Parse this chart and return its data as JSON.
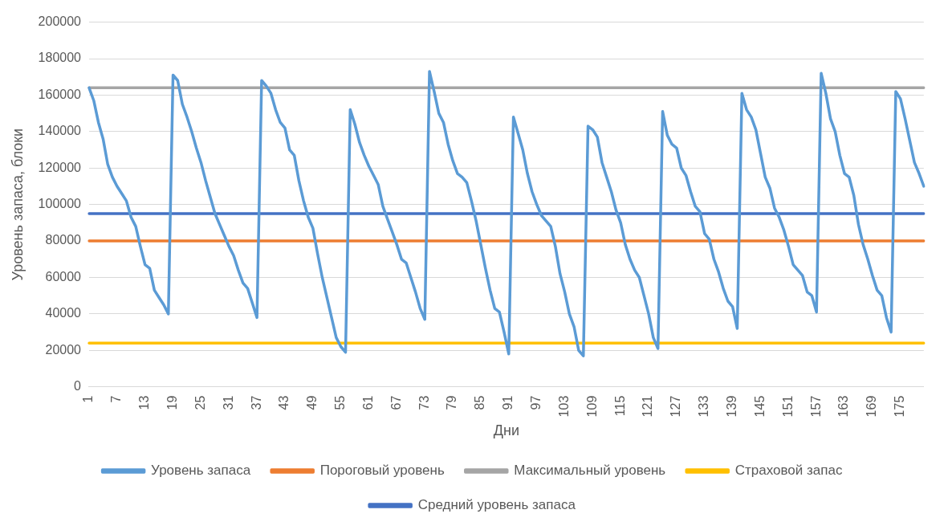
{
  "chart_data": {
    "type": "line",
    "xlabel": "Дни",
    "ylabel": "Уровень запаса, блоки",
    "categories": [
      "1",
      null,
      null,
      null,
      null,
      null,
      "7",
      null,
      null,
      null,
      null,
      null,
      "13",
      null,
      null,
      null,
      null,
      null,
      "19",
      null,
      null,
      null,
      null,
      null,
      "25",
      null,
      null,
      null,
      null,
      null,
      "31",
      null,
      null,
      null,
      null,
      null,
      "37",
      null,
      null,
      null,
      null,
      null,
      "43",
      null,
      null,
      null,
      null,
      null,
      "49",
      null,
      null,
      null,
      null,
      null,
      "55",
      null,
      null,
      null,
      null,
      null,
      "61",
      null,
      null,
      null,
      null,
      null,
      "67",
      null,
      null,
      null,
      null,
      null,
      "73",
      null,
      null,
      null,
      null,
      null,
      "79",
      null,
      null,
      null,
      null,
      null,
      "85",
      null,
      null,
      null,
      null,
      null,
      "91",
      null,
      null,
      null,
      null,
      null,
      "97",
      null,
      null,
      null,
      null,
      null,
      "103",
      null,
      null,
      null,
      null,
      null,
      "109",
      null,
      null,
      null,
      null,
      null,
      "115",
      null,
      null,
      null,
      null,
      null,
      "121",
      null,
      null,
      null,
      null,
      null,
      "127",
      null,
      null,
      null,
      null,
      null,
      "133",
      null,
      null,
      null,
      null,
      null,
      "139",
      null,
      null,
      null,
      null,
      null,
      "145",
      null,
      null,
      null,
      null,
      null,
      "151",
      null,
      null,
      null,
      null,
      null,
      "157",
      null,
      null,
      null,
      null,
      null,
      "163",
      null,
      null,
      null,
      null,
      null,
      "169",
      null,
      null,
      null,
      null,
      null,
      "175",
      null,
      null,
      null,
      null,
      null
    ],
    "series": [
      {
        "name": "Уровень запаса",
        "color": "#5b9bd5",
        "values": [
          164000,
          157000,
          145000,
          136000,
          122000,
          115000,
          110000,
          106000,
          102000,
          93000,
          88000,
          77000,
          67000,
          65000,
          53000,
          49000,
          45000,
          40000,
          171000,
          168000,
          155000,
          148000,
          140000,
          131000,
          123000,
          113000,
          104000,
          95000,
          89000,
          83000,
          77000,
          72000,
          64000,
          57000,
          54000,
          46000,
          38000,
          168000,
          165000,
          161000,
          152000,
          145000,
          142000,
          130000,
          127000,
          113000,
          102000,
          93000,
          87000,
          73000,
          60000,
          49000,
          38000,
          27000,
          22000,
          19000,
          152000,
          144000,
          134000,
          127000,
          121000,
          116000,
          111000,
          99000,
          92000,
          85000,
          78000,
          70000,
          68000,
          60000,
          52000,
          43000,
          37000,
          173000,
          162000,
          150000,
          145000,
          133000,
          124000,
          117000,
          115000,
          112000,
          102000,
          91000,
          78000,
          65000,
          53000,
          43000,
          41000,
          30000,
          18000,
          148000,
          139000,
          130000,
          117000,
          107000,
          100000,
          94000,
          91000,
          88000,
          77000,
          62000,
          52000,
          40000,
          33000,
          20000,
          17000,
          143000,
          141000,
          137000,
          123000,
          115000,
          107000,
          97000,
          90000,
          78000,
          70000,
          64000,
          60000,
          50000,
          40000,
          27000,
          21000,
          151000,
          138000,
          133000,
          131000,
          120000,
          116000,
          107000,
          99000,
          96000,
          84000,
          81000,
          70000,
          63000,
          54000,
          47000,
          44000,
          32000,
          161000,
          152000,
          148000,
          141000,
          128000,
          115000,
          109000,
          98000,
          93000,
          86000,
          77000,
          67000,
          64000,
          61000,
          52000,
          50000,
          41000,
          172000,
          161000,
          147000,
          140000,
          127000,
          117000,
          115000,
          105000,
          89000,
          78000,
          70000,
          61000,
          53000,
          50000,
          38000,
          30000,
          162000,
          158000,
          147000,
          135000,
          123000,
          117000,
          110000
        ]
      },
      {
        "name": "Пороговый уровень",
        "color": "#ed7d31",
        "values": [
          80000,
          80000,
          80000,
          80000,
          80000,
          80000,
          80000,
          80000,
          80000,
          80000,
          80000,
          80000,
          80000,
          80000,
          80000,
          80000,
          80000,
          80000,
          80000,
          80000,
          80000,
          80000,
          80000,
          80000,
          80000,
          80000,
          80000,
          80000,
          80000,
          80000,
          80000,
          80000,
          80000,
          80000,
          80000,
          80000,
          80000,
          80000,
          80000,
          80000,
          80000,
          80000,
          80000,
          80000,
          80000,
          80000,
          80000,
          80000,
          80000,
          80000,
          80000,
          80000,
          80000,
          80000,
          80000,
          80000,
          80000,
          80000,
          80000,
          80000,
          80000,
          80000,
          80000,
          80000,
          80000,
          80000,
          80000,
          80000,
          80000,
          80000,
          80000,
          80000,
          80000,
          80000,
          80000,
          80000,
          80000,
          80000,
          80000,
          80000,
          80000,
          80000,
          80000,
          80000,
          80000,
          80000,
          80000,
          80000,
          80000,
          80000,
          80000,
          80000,
          80000,
          80000,
          80000,
          80000,
          80000,
          80000,
          80000,
          80000,
          80000,
          80000,
          80000,
          80000,
          80000,
          80000,
          80000,
          80000,
          80000,
          80000,
          80000,
          80000,
          80000,
          80000,
          80000,
          80000,
          80000,
          80000,
          80000,
          80000,
          80000,
          80000,
          80000,
          80000,
          80000,
          80000,
          80000,
          80000,
          80000,
          80000,
          80000,
          80000,
          80000,
          80000,
          80000,
          80000,
          80000,
          80000,
          80000,
          80000,
          80000,
          80000,
          80000,
          80000,
          80000,
          80000,
          80000,
          80000,
          80000,
          80000,
          80000,
          80000,
          80000,
          80000,
          80000,
          80000,
          80000,
          80000,
          80000,
          80000,
          80000,
          80000,
          80000,
          80000,
          80000,
          80000,
          80000,
          80000,
          80000,
          80000,
          80000,
          80000,
          80000,
          80000,
          80000,
          80000,
          80000,
          80000,
          80000,
          80000
        ]
      },
      {
        "name": "Максимальный уровень",
        "color": "#a5a5a5",
        "values": [
          164000,
          164000,
          164000,
          164000,
          164000,
          164000,
          164000,
          164000,
          164000,
          164000,
          164000,
          164000,
          164000,
          164000,
          164000,
          164000,
          164000,
          164000,
          164000,
          164000,
          164000,
          164000,
          164000,
          164000,
          164000,
          164000,
          164000,
          164000,
          164000,
          164000,
          164000,
          164000,
          164000,
          164000,
          164000,
          164000,
          164000,
          164000,
          164000,
          164000,
          164000,
          164000,
          164000,
          164000,
          164000,
          164000,
          164000,
          164000,
          164000,
          164000,
          164000,
          164000,
          164000,
          164000,
          164000,
          164000,
          164000,
          164000,
          164000,
          164000,
          164000,
          164000,
          164000,
          164000,
          164000,
          164000,
          164000,
          164000,
          164000,
          164000,
          164000,
          164000,
          164000,
          164000,
          164000,
          164000,
          164000,
          164000,
          164000,
          164000,
          164000,
          164000,
          164000,
          164000,
          164000,
          164000,
          164000,
          164000,
          164000,
          164000,
          164000,
          164000,
          164000,
          164000,
          164000,
          164000,
          164000,
          164000,
          164000,
          164000,
          164000,
          164000,
          164000,
          164000,
          164000,
          164000,
          164000,
          164000,
          164000,
          164000,
          164000,
          164000,
          164000,
          164000,
          164000,
          164000,
          164000,
          164000,
          164000,
          164000,
          164000,
          164000,
          164000,
          164000,
          164000,
          164000,
          164000,
          164000,
          164000,
          164000,
          164000,
          164000,
          164000,
          164000,
          164000,
          164000,
          164000,
          164000,
          164000,
          164000,
          164000,
          164000,
          164000,
          164000,
          164000,
          164000,
          164000,
          164000,
          164000,
          164000,
          164000,
          164000,
          164000,
          164000,
          164000,
          164000,
          164000,
          164000,
          164000,
          164000,
          164000,
          164000,
          164000,
          164000,
          164000,
          164000,
          164000,
          164000,
          164000,
          164000,
          164000,
          164000,
          164000,
          164000,
          164000,
          164000,
          164000,
          164000,
          164000,
          164000
        ]
      },
      {
        "name": "Страховой запас",
        "color": "#ffc000",
        "values": [
          24000,
          24000,
          24000,
          24000,
          24000,
          24000,
          24000,
          24000,
          24000,
          24000,
          24000,
          24000,
          24000,
          24000,
          24000,
          24000,
          24000,
          24000,
          24000,
          24000,
          24000,
          24000,
          24000,
          24000,
          24000,
          24000,
          24000,
          24000,
          24000,
          24000,
          24000,
          24000,
          24000,
          24000,
          24000,
          24000,
          24000,
          24000,
          24000,
          24000,
          24000,
          24000,
          24000,
          24000,
          24000,
          24000,
          24000,
          24000,
          24000,
          24000,
          24000,
          24000,
          24000,
          24000,
          24000,
          24000,
          24000,
          24000,
          24000,
          24000,
          24000,
          24000,
          24000,
          24000,
          24000,
          24000,
          24000,
          24000,
          24000,
          24000,
          24000,
          24000,
          24000,
          24000,
          24000,
          24000,
          24000,
          24000,
          24000,
          24000,
          24000,
          24000,
          24000,
          24000,
          24000,
          24000,
          24000,
          24000,
          24000,
          24000,
          24000,
          24000,
          24000,
          24000,
          24000,
          24000,
          24000,
          24000,
          24000,
          24000,
          24000,
          24000,
          24000,
          24000,
          24000,
          24000,
          24000,
          24000,
          24000,
          24000,
          24000,
          24000,
          24000,
          24000,
          24000,
          24000,
          24000,
          24000,
          24000,
          24000,
          24000,
          24000,
          24000,
          24000,
          24000,
          24000,
          24000,
          24000,
          24000,
          24000,
          24000,
          24000,
          24000,
          24000,
          24000,
          24000,
          24000,
          24000,
          24000,
          24000,
          24000,
          24000,
          24000,
          24000,
          24000,
          24000,
          24000,
          24000,
          24000,
          24000,
          24000,
          24000,
          24000,
          24000,
          24000,
          24000,
          24000,
          24000,
          24000,
          24000,
          24000,
          24000,
          24000,
          24000,
          24000,
          24000,
          24000,
          24000,
          24000,
          24000,
          24000,
          24000,
          24000,
          24000,
          24000,
          24000,
          24000,
          24000,
          24000,
          24000
        ]
      },
      {
        "name": "Средний уровень запаса",
        "color": "#4472c4",
        "values": [
          95000,
          95000,
          95000,
          95000,
          95000,
          95000,
          95000,
          95000,
          95000,
          95000,
          95000,
          95000,
          95000,
          95000,
          95000,
          95000,
          95000,
          95000,
          95000,
          95000,
          95000,
          95000,
          95000,
          95000,
          95000,
          95000,
          95000,
          95000,
          95000,
          95000,
          95000,
          95000,
          95000,
          95000,
          95000,
          95000,
          95000,
          95000,
          95000,
          95000,
          95000,
          95000,
          95000,
          95000,
          95000,
          95000,
          95000,
          95000,
          95000,
          95000,
          95000,
          95000,
          95000,
          95000,
          95000,
          95000,
          95000,
          95000,
          95000,
          95000,
          95000,
          95000,
          95000,
          95000,
          95000,
          95000,
          95000,
          95000,
          95000,
          95000,
          95000,
          95000,
          95000,
          95000,
          95000,
          95000,
          95000,
          95000,
          95000,
          95000,
          95000,
          95000,
          95000,
          95000,
          95000,
          95000,
          95000,
          95000,
          95000,
          95000,
          95000,
          95000,
          95000,
          95000,
          95000,
          95000,
          95000,
          95000,
          95000,
          95000,
          95000,
          95000,
          95000,
          95000,
          95000,
          95000,
          95000,
          95000,
          95000,
          95000,
          95000,
          95000,
          95000,
          95000,
          95000,
          95000,
          95000,
          95000,
          95000,
          95000,
          95000,
          95000,
          95000,
          95000,
          95000,
          95000,
          95000,
          95000,
          95000,
          95000,
          95000,
          95000,
          95000,
          95000,
          95000,
          95000,
          95000,
          95000,
          95000,
          95000,
          95000,
          95000,
          95000,
          95000,
          95000,
          95000,
          95000,
          95000,
          95000,
          95000,
          95000,
          95000,
          95000,
          95000,
          95000,
          95000,
          95000,
          95000,
          95000,
          95000,
          95000,
          95000,
          95000,
          95000,
          95000,
          95000,
          95000,
          95000,
          95000,
          95000,
          95000,
          95000,
          95000,
          95000,
          95000,
          95000,
          95000,
          95000,
          95000,
          95000
        ]
      }
    ],
    "ylim": [
      0,
      200000
    ],
    "yticks": [
      0,
      20000,
      40000,
      60000,
      80000,
      100000,
      120000,
      140000,
      160000,
      180000,
      200000
    ],
    "grid": "y",
    "legend": "bottom",
    "marker": "none",
    "line_style": "solid"
  }
}
